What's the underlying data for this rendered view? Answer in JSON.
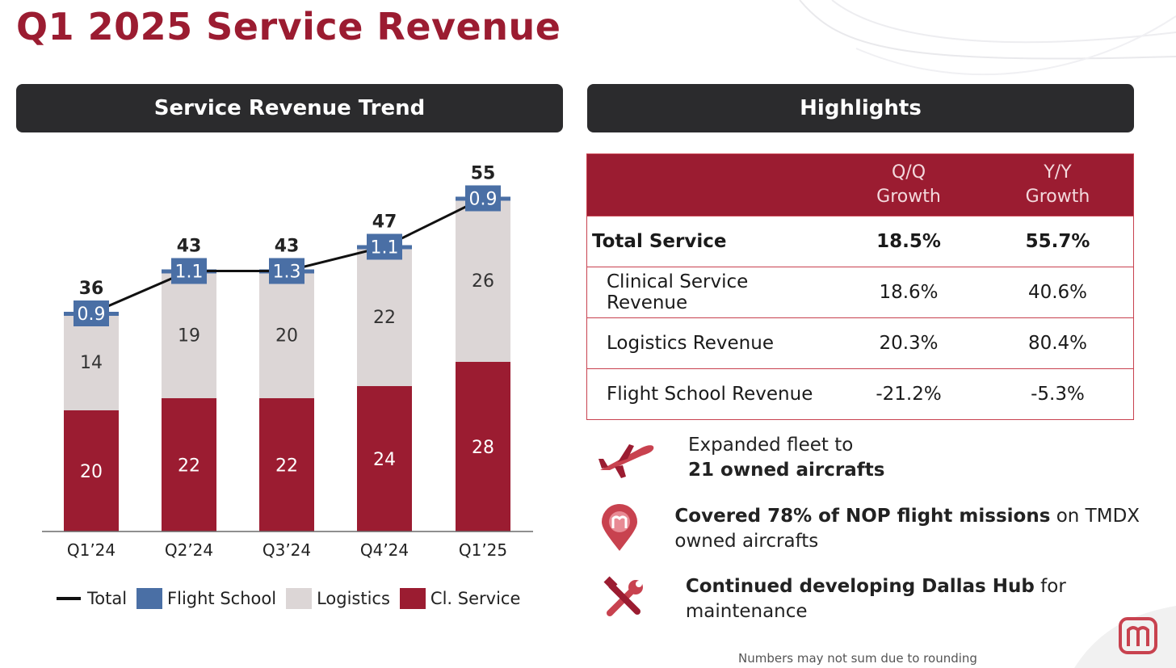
{
  "page": {
    "title": "Q1 2025 Service Revenue",
    "left_header": "Service Revenue Trend",
    "right_header": "Highlights",
    "footnote": "Numbers may not sum due to rounding"
  },
  "colors": {
    "accent": "#9b1c31",
    "flight_school": "#4a6fa5",
    "logistics": "#dcd6d6",
    "cl_service": "#9b1c31",
    "header_bg": "#2b2b2d"
  },
  "chart_data": {
    "type": "bar",
    "stacked": true,
    "categories": [
      "Q1’24",
      "Q2’24",
      "Q3’24",
      "Q4’24",
      "Q1’25"
    ],
    "series": [
      {
        "name": "Cl. Service",
        "values": [
          20,
          22,
          22,
          24,
          28
        ]
      },
      {
        "name": "Logistics",
        "values": [
          14,
          19,
          20,
          22,
          26
        ]
      },
      {
        "name": "Flight School",
        "values": [
          0.9,
          1.1,
          1.3,
          1.1,
          0.9
        ]
      }
    ],
    "line_series": {
      "name": "Total",
      "values": [
        36,
        43,
        43,
        47,
        55
      ]
    },
    "grid": false,
    "legend_position": "bottom",
    "legend": [
      {
        "label": "Total",
        "kind": "line"
      },
      {
        "label": "Flight School",
        "kind": "box"
      },
      {
        "label": "Logistics",
        "kind": "box"
      },
      {
        "label": "Cl. Service",
        "kind": "box"
      }
    ]
  },
  "highlights_table": {
    "columns": [
      "",
      "Q/Q\nGrowth",
      "Y/Y\nGrowth"
    ],
    "col1_line1": "Q/Q",
    "col1_line2": "Growth",
    "col2_line1": "Y/Y",
    "col2_line2": "Growth",
    "rows": [
      {
        "name": "Total Service",
        "qq": "18.5%",
        "yy": "55.7%"
      },
      {
        "name": "Clinical Service Revenue",
        "qq": "18.6%",
        "yy": "40.6%"
      },
      {
        "name": "Logistics Revenue",
        "qq": "20.3%",
        "yy": "80.4%"
      },
      {
        "name": "Flight School Revenue",
        "qq": "-21.2%",
        "yy": "-5.3%"
      }
    ]
  },
  "highlights": [
    {
      "icon": "airplane-icon",
      "pre": "Expanded fleet to",
      "bold": "21 owned aircrafts",
      "post": ""
    },
    {
      "icon": "location-pin-icon",
      "pre": "",
      "bold": "Covered 78% of NOP flight missions",
      "post": " on TMDX owned aircrafts"
    },
    {
      "icon": "tools-icon",
      "pre": "",
      "bold": "Continued developing Dallas Hub",
      "post": " for maintenance"
    }
  ]
}
